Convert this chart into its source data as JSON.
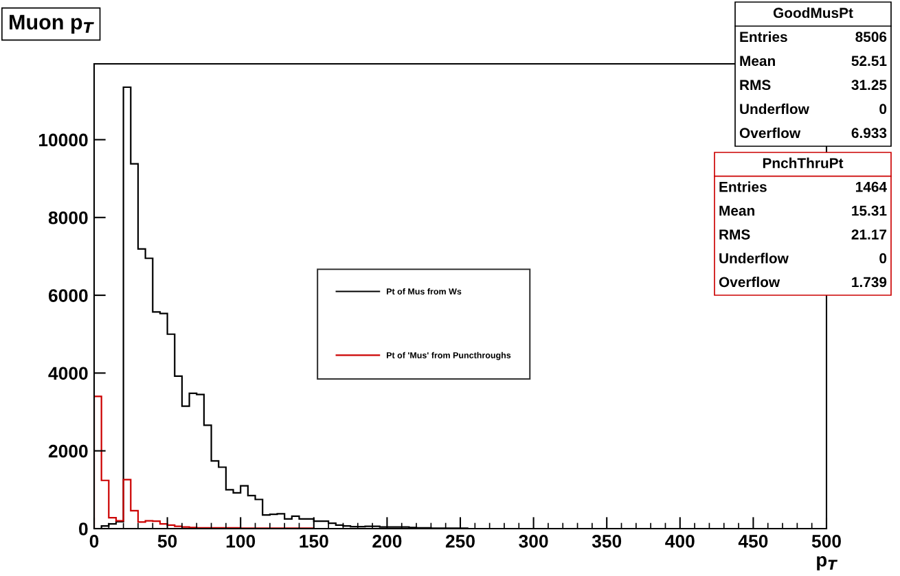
{
  "chart_data": {
    "type": "histogram",
    "title": "Muon p$_{T}$",
    "xlabel": "p$_{T}$",
    "bins": [
      0,
      5,
      10,
      15,
      20,
      25,
      30,
      35,
      40,
      45,
      50,
      55,
      60,
      65,
      70,
      75,
      80,
      85,
      90,
      95,
      100,
      105,
      110,
      115,
      120,
      125,
      130,
      135,
      140,
      145,
      150,
      155,
      160,
      165,
      170,
      175,
      180,
      185,
      190,
      195,
      200,
      205,
      210,
      215,
      220,
      225,
      230,
      235,
      240,
      245,
      250,
      255,
      260,
      265,
      270,
      275,
      280,
      285,
      290,
      295,
      300,
      305,
      310,
      315,
      320,
      325,
      330,
      335,
      340,
      345,
      350,
      355,
      360,
      365,
      370,
      375,
      380,
      385,
      390,
      395,
      400,
      405,
      410,
      415,
      420,
      425,
      430,
      435,
      440,
      445,
      450,
      455,
      460,
      465,
      470,
      475,
      480,
      485,
      490,
      495,
      500
    ],
    "series": [
      {
        "name": "Pt of Mus from Ws",
        "color": "#000000",
        "values": [
          0,
          70,
          120,
          180,
          11350,
          9380,
          7190,
          6950,
          5570,
          5530,
          5000,
          3920,
          3150,
          3480,
          3450,
          2660,
          1740,
          1580,
          1000,
          920,
          1100,
          850,
          750,
          350,
          370,
          380,
          250,
          320,
          250,
          250,
          190,
          190,
          140,
          90,
          70,
          50,
          50,
          60,
          60,
          40,
          40,
          40,
          40,
          30,
          20,
          20,
          10,
          10,
          10,
          10,
          10,
          0,
          0,
          0,
          0,
          0,
          0,
          0,
          0,
          0,
          0,
          0,
          0,
          0,
          0,
          0,
          0,
          0,
          0,
          0,
          0,
          0,
          0,
          0,
          0,
          0,
          0,
          0,
          0,
          0,
          0,
          0,
          0,
          0,
          0,
          0,
          0,
          0,
          0,
          0,
          0,
          0,
          0,
          0,
          0,
          0,
          0,
          0,
          0,
          0
        ]
      },
      {
        "name": "Pt of 'Mus' from Puncthroughs",
        "color": "#cc0000",
        "values": [
          3400,
          1240,
          280,
          200,
          1260,
          460,
          170,
          200,
          190,
          120,
          90,
          60,
          40,
          30,
          20,
          20,
          20,
          20,
          20,
          20,
          10,
          10,
          10,
          10,
          10,
          10,
          10,
          10,
          10,
          10,
          0,
          0,
          0,
          0,
          0,
          0,
          0,
          0,
          0,
          0,
          0,
          0,
          0,
          0,
          0,
          0,
          0,
          0,
          0,
          0,
          0,
          0,
          0,
          0,
          0,
          0,
          0,
          0,
          0,
          0,
          0,
          0,
          0,
          0,
          0,
          0,
          0,
          0,
          0,
          0,
          0,
          0,
          0,
          0,
          0,
          0,
          0,
          0,
          0,
          0,
          0,
          0,
          0,
          0,
          0,
          0,
          0,
          0,
          0,
          0,
          0,
          0,
          0,
          0,
          0,
          0,
          0,
          0,
          0,
          0
        ]
      }
    ],
    "xlim": [
      0,
      500
    ],
    "xticks": [
      0,
      50,
      100,
      150,
      200,
      250,
      300,
      350,
      400,
      450,
      500
    ],
    "ylim": [
      0,
      11950
    ],
    "yticks": [
      0,
      2000,
      4000,
      6000,
      8000,
      10000
    ],
    "legend": "center",
    "grid": false,
    "annotations": [
      "GoodMusPt\nEntries\t8506\nMean\t52.51\nRMS\t31.25\nUnderflow\t0\nOverflow\t6.933",
      "PnchThruPt\nEntries\t1464\nMean\t15.31\nRMS\t21.17\nUnderflow\t0\nOverflow\t1.739"
    ]
  }
}
